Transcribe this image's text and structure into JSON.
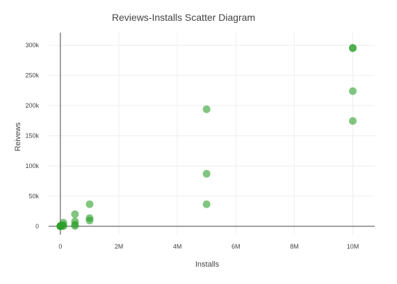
{
  "chart_data": {
    "type": "scatter",
    "title": "Reviews-Installs Scatter Diagram",
    "xlabel": "Installs",
    "ylabel": "Reivews",
    "xlim": [
      -400000,
      10750000
    ],
    "ylim": [
      -14000,
      321000
    ],
    "x_ticks": [
      0,
      2000000,
      4000000,
      6000000,
      8000000,
      10000000
    ],
    "x_tick_labels": [
      "0",
      "2M",
      "4M",
      "6M",
      "8M",
      "10M"
    ],
    "y_ticks": [
      0,
      50000,
      100000,
      150000,
      200000,
      250000,
      300000
    ],
    "y_tick_labels": [
      "0",
      "50k",
      "100k",
      "150k",
      "200k",
      "250k",
      "300k"
    ],
    "grid": true,
    "legend": "none",
    "marker_color": "#2ca02c",
    "series": [
      {
        "x": [
          10000000,
          10000000,
          10000000,
          10000000,
          5000000,
          5000000,
          5000000,
          1000000,
          1000000,
          1000000,
          500000,
          500000,
          500000,
          500000,
          100000,
          100000,
          100000,
          50000,
          10000,
          5000,
          1000,
          500,
          100,
          50,
          10
        ],
        "y": [
          295000,
          296000,
          224000,
          174500,
          194000,
          87000,
          36500,
          36500,
          13500,
          9500,
          20000,
          8000,
          3000,
          500,
          6000,
          2000,
          300,
          1500,
          600,
          400,
          200,
          150,
          80,
          50,
          20
        ]
      }
    ]
  }
}
